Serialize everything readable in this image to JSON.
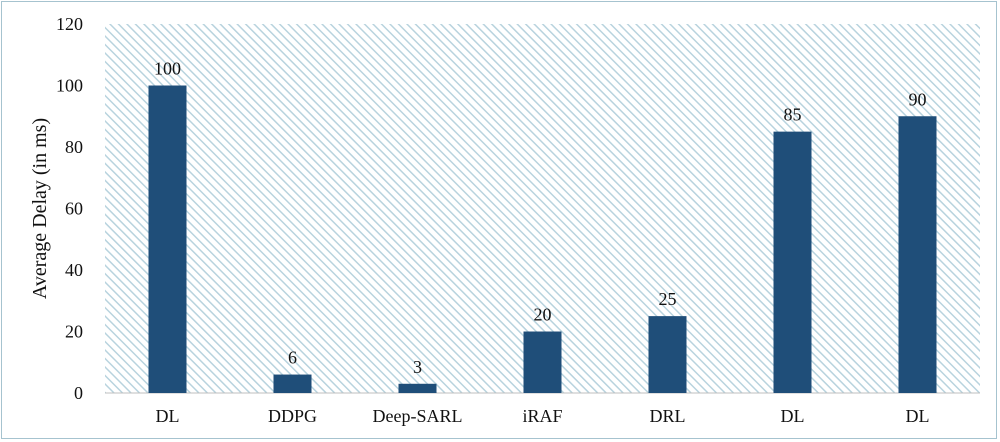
{
  "chart_data": {
    "type": "bar",
    "categories": [
      "DL",
      "DDPG",
      "Deep-SARL",
      "iRAF",
      "DRL",
      "DL",
      "DL"
    ],
    "values": [
      100,
      6,
      3,
      20,
      25,
      85,
      90
    ],
    "data_labels": [
      "100",
      "6",
      "3",
      "20",
      "25",
      "85",
      "90"
    ],
    "title": "",
    "xlabel": "",
    "ylabel": "Average Delay (in ms)",
    "ylim": [
      0,
      120
    ],
    "yticks": [
      0,
      20,
      40,
      60,
      80,
      100,
      120
    ],
    "ytick_labels": [
      "0",
      "20",
      "40",
      "60",
      "80",
      "100",
      "120"
    ],
    "grid": false,
    "legend": "none",
    "bar_color": "#1f4e79",
    "plot_background": "diagonal-hatch",
    "hatch_color": "#b8d3de"
  }
}
